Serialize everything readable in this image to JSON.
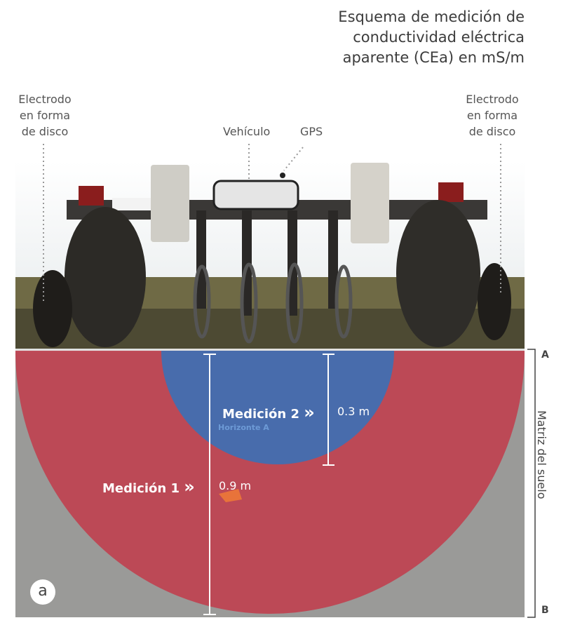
{
  "title": {
    "line1": "Esquema de medición de",
    "line2": "conductividad eléctrica",
    "line3": "aparente (CEa) en mS/m"
  },
  "labels": {
    "electrode_left": {
      "line1": "Electrodo",
      "line2": "en forma",
      "line3": "de disco"
    },
    "electrode_right": {
      "line1": "Electrodo",
      "line2": "en forma",
      "line3": "de disco"
    },
    "vehicle": "Vehículo",
    "gps": "GPS"
  },
  "measurements": {
    "m1": {
      "label": "Medición 1",
      "arrow": "»",
      "depth": "0.9 m"
    },
    "m2": {
      "label": "Medición 2",
      "arrow": "»",
      "depth": "0.3 m"
    }
  },
  "horizon_label": "Horizonte A",
  "side": {
    "label": "Matriz del suelo",
    "top": "A",
    "bottom": "B"
  },
  "panel_letter": "a",
  "colors": {
    "measurement1": "#c0404f",
    "measurement2": "#3f6fb3",
    "soil": "#9a9a98",
    "arrow_orange": "#e8733a"
  }
}
